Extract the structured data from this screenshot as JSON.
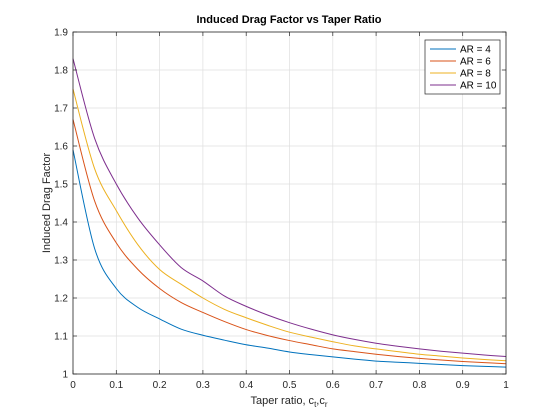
{
  "chart_data": {
    "type": "line",
    "title": "Induced Drag Factor vs Taper Ratio",
    "xlabel": {
      "prefix": "Taper ratio, c",
      "sub1": "t",
      "mid": ",c",
      "sub2": "r"
    },
    "ylabel": "Induced Drag Factor",
    "xlim": [
      0,
      1
    ],
    "ylim": [
      1,
      1.9
    ],
    "xticks": [
      0,
      0.1,
      0.2,
      0.3,
      0.4,
      0.5,
      0.6,
      0.7,
      0.8,
      0.9,
      1
    ],
    "yticks": [
      1,
      1.1,
      1.2,
      1.3,
      1.4,
      1.5,
      1.6,
      1.7,
      1.8,
      1.9
    ],
    "grid": true,
    "legend_position": "top-right",
    "x": [
      0,
      0.05,
      0.1,
      0.15,
      0.2,
      0.25,
      0.3,
      0.35,
      0.4,
      0.45,
      0.5,
      0.55,
      0.6,
      0.65,
      0.7,
      0.75,
      0.8,
      0.85,
      0.9,
      0.95,
      1
    ],
    "series": [
      {
        "name": "AR = 4",
        "color": "#0072BD",
        "values": [
          1.59,
          1.33,
          1.225,
          1.175,
          1.145,
          1.118,
          1.102,
          1.089,
          1.077,
          1.068,
          1.058,
          1.051,
          1.045,
          1.039,
          1.034,
          1.031,
          1.028,
          1.025,
          1.022,
          1.02,
          1.018
        ]
      },
      {
        "name": "AR = 6",
        "color": "#D95319",
        "values": [
          1.67,
          1.455,
          1.345,
          1.275,
          1.225,
          1.188,
          1.162,
          1.138,
          1.117,
          1.101,
          1.088,
          1.077,
          1.066,
          1.059,
          1.052,
          1.046,
          1.041,
          1.037,
          1.033,
          1.03,
          1.027
        ]
      },
      {
        "name": "AR = 8",
        "color": "#EDB120",
        "values": [
          1.75,
          1.54,
          1.43,
          1.34,
          1.275,
          1.236,
          1.2,
          1.17,
          1.148,
          1.128,
          1.11,
          1.097,
          1.085,
          1.074,
          1.066,
          1.059,
          1.052,
          1.047,
          1.042,
          1.038,
          1.035
        ]
      },
      {
        "name": "AR = 10",
        "color": "#7E2F8E",
        "values": [
          1.83,
          1.62,
          1.5,
          1.41,
          1.34,
          1.28,
          1.245,
          1.205,
          1.178,
          1.155,
          1.135,
          1.118,
          1.103,
          1.091,
          1.081,
          1.073,
          1.066,
          1.06,
          1.055,
          1.05,
          1.046
        ]
      }
    ]
  }
}
